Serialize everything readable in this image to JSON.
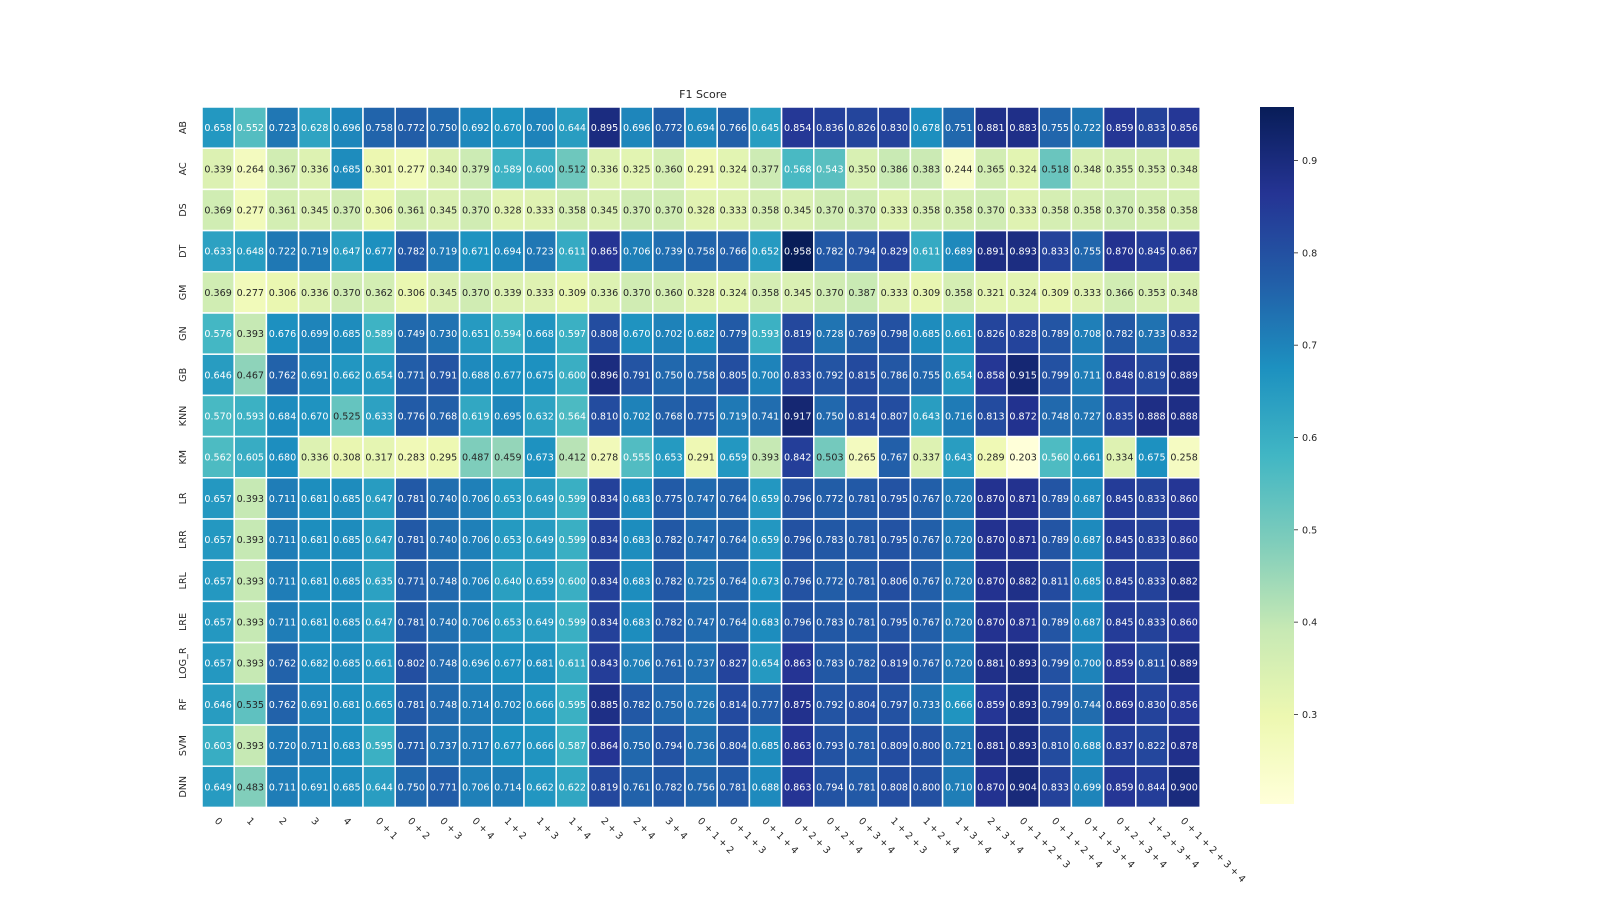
{
  "chart_data": {
    "type": "heatmap",
    "title": "F1 Score",
    "rows": [
      "AB",
      "AC",
      "DS",
      "DT",
      "GM",
      "GN",
      "GB",
      "KNN",
      "KM",
      "LR",
      "LRR",
      "LRL",
      "LRE",
      "LOG_R",
      "RF",
      "SVM",
      "DNN"
    ],
    "columns": [
      "0",
      "1",
      "2",
      "3",
      "4",
      "0 + 1",
      "0 + 2",
      "0 + 3",
      "0 + 4",
      "1 + 2",
      "1 + 3",
      "1 + 4",
      "2 + 3",
      "2 + 4",
      "3 + 4",
      "0 + 1 + 2",
      "0 + 1 + 3",
      "0 + 1 + 4",
      "0 + 2 + 3",
      "0 + 2 + 4",
      "0 + 3 + 4",
      "1 + 2 + 3",
      "1 + 2 + 4",
      "1 + 3 + 4",
      "2 + 3 + 4",
      "0 + 1 + 2 + 3",
      "0 + 1 + 2 + 4",
      "0 + 1 + 3 + 4",
      "0 + 2 + 3 + 4",
      "1 + 2 + 3 + 4",
      "0 + 1 + 2 + 3 + 4"
    ],
    "values": [
      [
        0.658,
        0.552,
        0.723,
        0.628,
        0.696,
        0.758,
        0.772,
        0.75,
        0.692,
        0.67,
        0.7,
        0.644,
        0.895,
        0.696,
        0.772,
        0.694,
        0.766,
        0.645,
        0.854,
        0.836,
        0.826,
        0.83,
        0.678,
        0.751,
        0.881,
        0.883,
        0.755,
        0.722,
        0.859,
        0.833,
        0.856
      ],
      [
        0.339,
        0.264,
        0.367,
        0.336,
        0.685,
        0.301,
        0.277,
        0.34,
        0.379,
        0.589,
        0.6,
        0.512,
        0.336,
        0.325,
        0.36,
        0.291,
        0.324,
        0.377,
        0.568,
        0.543,
        0.35,
        0.386,
        0.383,
        0.244,
        0.365,
        0.324,
        0.518,
        0.348,
        0.355,
        0.353,
        0.348
      ],
      [
        0.369,
        0.277,
        0.361,
        0.345,
        0.37,
        0.306,
        0.361,
        0.345,
        0.37,
        0.328,
        0.333,
        0.358,
        0.345,
        0.37,
        0.37,
        0.328,
        0.333,
        0.358,
        0.345,
        0.37,
        0.37,
        0.333,
        0.358,
        0.358,
        0.37,
        0.333,
        0.358,
        0.358,
        0.37,
        0.358,
        0.358
      ],
      [
        0.633,
        0.648,
        0.722,
        0.719,
        0.647,
        0.677,
        0.782,
        0.719,
        0.671,
        0.694,
        0.723,
        0.611,
        0.865,
        0.706,
        0.739,
        0.758,
        0.766,
        0.652,
        0.958,
        0.782,
        0.794,
        0.829,
        0.611,
        0.689,
        0.891,
        0.893,
        0.833,
        0.755,
        0.87,
        0.845,
        0.867
      ],
      [
        0.369,
        0.277,
        0.306,
        0.336,
        0.37,
        0.362,
        0.306,
        0.345,
        0.37,
        0.339,
        0.333,
        0.309,
        0.336,
        0.37,
        0.36,
        0.328,
        0.324,
        0.358,
        0.345,
        0.37,
        0.387,
        0.333,
        0.309,
        0.358,
        0.321,
        0.324,
        0.309,
        0.333,
        0.366,
        0.353,
        0.348
      ],
      [
        0.576,
        0.393,
        0.676,
        0.699,
        0.685,
        0.589,
        0.749,
        0.73,
        0.651,
        0.594,
        0.668,
        0.597,
        0.808,
        0.67,
        0.702,
        0.682,
        0.779,
        0.593,
        0.819,
        0.728,
        0.769,
        0.798,
        0.685,
        0.661,
        0.826,
        0.828,
        0.789,
        0.708,
        0.782,
        0.733,
        0.832
      ],
      [
        0.646,
        0.467,
        0.762,
        0.691,
        0.662,
        0.654,
        0.771,
        0.791,
        0.688,
        0.677,
        0.675,
        0.6,
        0.896,
        0.791,
        0.75,
        0.758,
        0.805,
        0.7,
        0.833,
        0.792,
        0.815,
        0.786,
        0.755,
        0.654,
        0.858,
        0.915,
        0.799,
        0.711,
        0.848,
        0.819,
        0.889
      ],
      [
        0.57,
        0.593,
        0.684,
        0.67,
        0.525,
        0.633,
        0.776,
        0.768,
        0.619,
        0.695,
        0.632,
        0.564,
        0.81,
        0.702,
        0.768,
        0.775,
        0.719,
        0.741,
        0.917,
        0.75,
        0.814,
        0.807,
        0.643,
        0.716,
        0.813,
        0.872,
        0.748,
        0.727,
        0.835,
        0.888,
        0.888
      ],
      [
        0.562,
        0.605,
        0.68,
        0.336,
        0.308,
        0.317,
        0.283,
        0.295,
        0.487,
        0.459,
        0.673,
        0.412,
        0.278,
        0.555,
        0.653,
        0.291,
        0.659,
        0.393,
        0.842,
        0.503,
        0.265,
        0.767,
        0.337,
        0.643,
        0.289,
        0.203,
        0.56,
        0.661,
        0.334,
        0.675,
        0.258
      ],
      [
        0.657,
        0.393,
        0.711,
        0.681,
        0.685,
        0.647,
        0.781,
        0.74,
        0.706,
        0.653,
        0.649,
        0.599,
        0.834,
        0.683,
        0.775,
        0.747,
        0.764,
        0.659,
        0.796,
        0.772,
        0.781,
        0.795,
        0.767,
        0.72,
        0.87,
        0.871,
        0.789,
        0.687,
        0.845,
        0.833,
        0.86
      ],
      [
        0.657,
        0.393,
        0.711,
        0.681,
        0.685,
        0.647,
        0.781,
        0.74,
        0.706,
        0.653,
        0.649,
        0.599,
        0.834,
        0.683,
        0.782,
        0.747,
        0.764,
        0.659,
        0.796,
        0.783,
        0.781,
        0.795,
        0.767,
        0.72,
        0.87,
        0.871,
        0.789,
        0.687,
        0.845,
        0.833,
        0.86
      ],
      [
        0.657,
        0.393,
        0.711,
        0.681,
        0.685,
        0.635,
        0.771,
        0.748,
        0.706,
        0.64,
        0.659,
        0.6,
        0.834,
        0.683,
        0.782,
        0.725,
        0.764,
        0.673,
        0.796,
        0.772,
        0.781,
        0.806,
        0.767,
        0.72,
        0.87,
        0.882,
        0.811,
        0.685,
        0.845,
        0.833,
        0.882
      ],
      [
        0.657,
        0.393,
        0.711,
        0.681,
        0.685,
        0.647,
        0.781,
        0.74,
        0.706,
        0.653,
        0.649,
        0.599,
        0.834,
        0.683,
        0.782,
        0.747,
        0.764,
        0.683,
        0.796,
        0.783,
        0.781,
        0.795,
        0.767,
        0.72,
        0.87,
        0.871,
        0.789,
        0.687,
        0.845,
        0.833,
        0.86
      ],
      [
        0.657,
        0.393,
        0.762,
        0.682,
        0.685,
        0.661,
        0.802,
        0.748,
        0.696,
        0.677,
        0.681,
        0.611,
        0.843,
        0.706,
        0.761,
        0.737,
        0.827,
        0.654,
        0.863,
        0.783,
        0.782,
        0.819,
        0.767,
        0.72,
        0.881,
        0.893,
        0.799,
        0.7,
        0.859,
        0.811,
        0.889
      ],
      [
        0.646,
        0.535,
        0.762,
        0.691,
        0.681,
        0.665,
        0.781,
        0.748,
        0.714,
        0.702,
        0.666,
        0.595,
        0.885,
        0.782,
        0.75,
        0.726,
        0.814,
        0.777,
        0.875,
        0.792,
        0.804,
        0.797,
        0.733,
        0.666,
        0.859,
        0.893,
        0.799,
        0.744,
        0.869,
        0.83,
        0.856
      ],
      [
        0.603,
        0.393,
        0.72,
        0.711,
        0.683,
        0.595,
        0.771,
        0.737,
        0.717,
        0.677,
        0.666,
        0.587,
        0.864,
        0.75,
        0.794,
        0.736,
        0.804,
        0.685,
        0.863,
        0.793,
        0.781,
        0.809,
        0.8,
        0.721,
        0.881,
        0.893,
        0.81,
        0.688,
        0.837,
        0.822,
        0.878
      ],
      [
        0.649,
        0.483,
        0.711,
        0.691,
        0.685,
        0.644,
        0.75,
        0.771,
        0.706,
        0.714,
        0.662,
        0.622,
        0.819,
        0.761,
        0.782,
        0.756,
        0.781,
        0.688,
        0.863,
        0.794,
        0.781,
        0.808,
        0.8,
        0.71,
        0.87,
        0.904,
        0.833,
        0.699,
        0.859,
        0.844,
        0.9
      ]
    ],
    "colorscale": "YlGnBu",
    "vmin": 0.203,
    "vmax": 0.958,
    "colorbar_ticks": [
      0.3,
      0.4,
      0.5,
      0.6,
      0.7,
      0.8,
      0.9
    ],
    "colorbar_tick_labels": [
      "0.3",
      "0.4",
      "0.5",
      "0.6",
      "0.7",
      "0.8",
      "0.9"
    ]
  }
}
